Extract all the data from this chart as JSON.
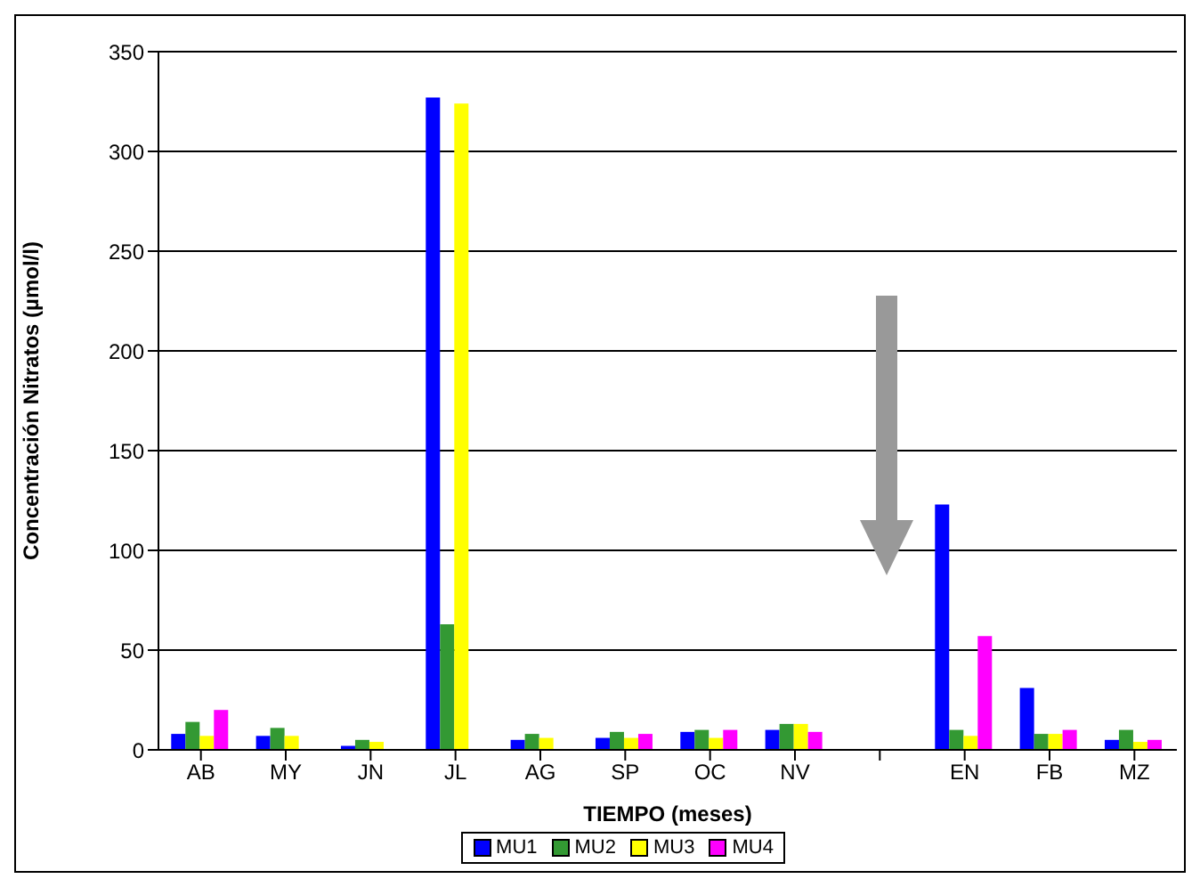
{
  "chart_data": {
    "type": "bar",
    "xlabel": "TIEMPO (meses)",
    "ylabel": "Concentración Nitratos (µmol/l)",
    "categories": [
      "AB",
      "MY",
      "JN",
      "JL",
      "AG",
      "SP",
      "OC",
      "NV",
      null,
      "EN",
      "FB",
      "MZ"
    ],
    "series": [
      {
        "name": "MU1",
        "color": "#0000ff",
        "values": [
          8,
          7,
          2,
          327,
          5,
          6,
          9,
          10,
          null,
          123,
          31,
          5
        ]
      },
      {
        "name": "MU2",
        "color": "#339933",
        "values": [
          14,
          11,
          5,
          63,
          8,
          9,
          10,
          13,
          null,
          10,
          8,
          10
        ]
      },
      {
        "name": "MU3",
        "color": "#ffff00",
        "values": [
          7,
          7,
          4,
          324,
          6,
          6,
          6,
          13,
          null,
          7,
          8,
          4
        ]
      },
      {
        "name": "MU4",
        "color": "#ff00ff",
        "values": [
          20,
          null,
          null,
          null,
          null,
          8,
          10,
          9,
          null,
          57,
          10,
          5
        ]
      }
    ],
    "ylim": [
      0,
      350
    ],
    "yticks": [
      0,
      50,
      100,
      150,
      200,
      250,
      300,
      350
    ],
    "grid": "y",
    "legend": "bottom"
  }
}
